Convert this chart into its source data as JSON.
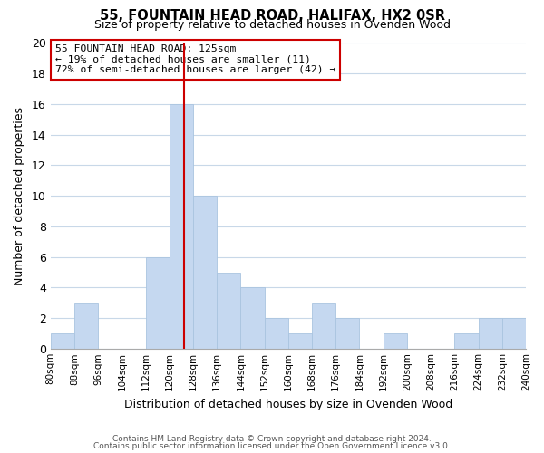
{
  "title": "55, FOUNTAIN HEAD ROAD, HALIFAX, HX2 0SR",
  "subtitle": "Size of property relative to detached houses in Ovenden Wood",
  "xlabel": "Distribution of detached houses by size in Ovenden Wood",
  "ylabel": "Number of detached properties",
  "bar_color": "#c5d8f0",
  "bar_edge_color": "#aac4e0",
  "vline_x": 125,
  "vline_color": "#cc0000",
  "annotation_line1": "55 FOUNTAIN HEAD ROAD: 125sqm",
  "annotation_line2": "← 19% of detached houses are smaller (11)",
  "annotation_line3": "72% of semi-detached houses are larger (42) →",
  "bins": [
    80,
    88,
    96,
    104,
    112,
    120,
    128,
    136,
    144,
    152,
    160,
    168,
    176,
    184,
    192,
    200,
    208,
    216,
    224,
    232,
    240
  ],
  "counts": [
    1,
    3,
    0,
    0,
    6,
    16,
    10,
    5,
    4,
    2,
    1,
    3,
    2,
    0,
    1,
    0,
    0,
    1,
    2,
    2
  ],
  "ylim": [
    0,
    20
  ],
  "yticks": [
    0,
    2,
    4,
    6,
    8,
    10,
    12,
    14,
    16,
    18,
    20
  ],
  "footnote1": "Contains HM Land Registry data © Crown copyright and database right 2024.",
  "footnote2": "Contains public sector information licensed under the Open Government Licence v3.0.",
  "background_color": "#ffffff",
  "grid_color": "#c8d8e8"
}
